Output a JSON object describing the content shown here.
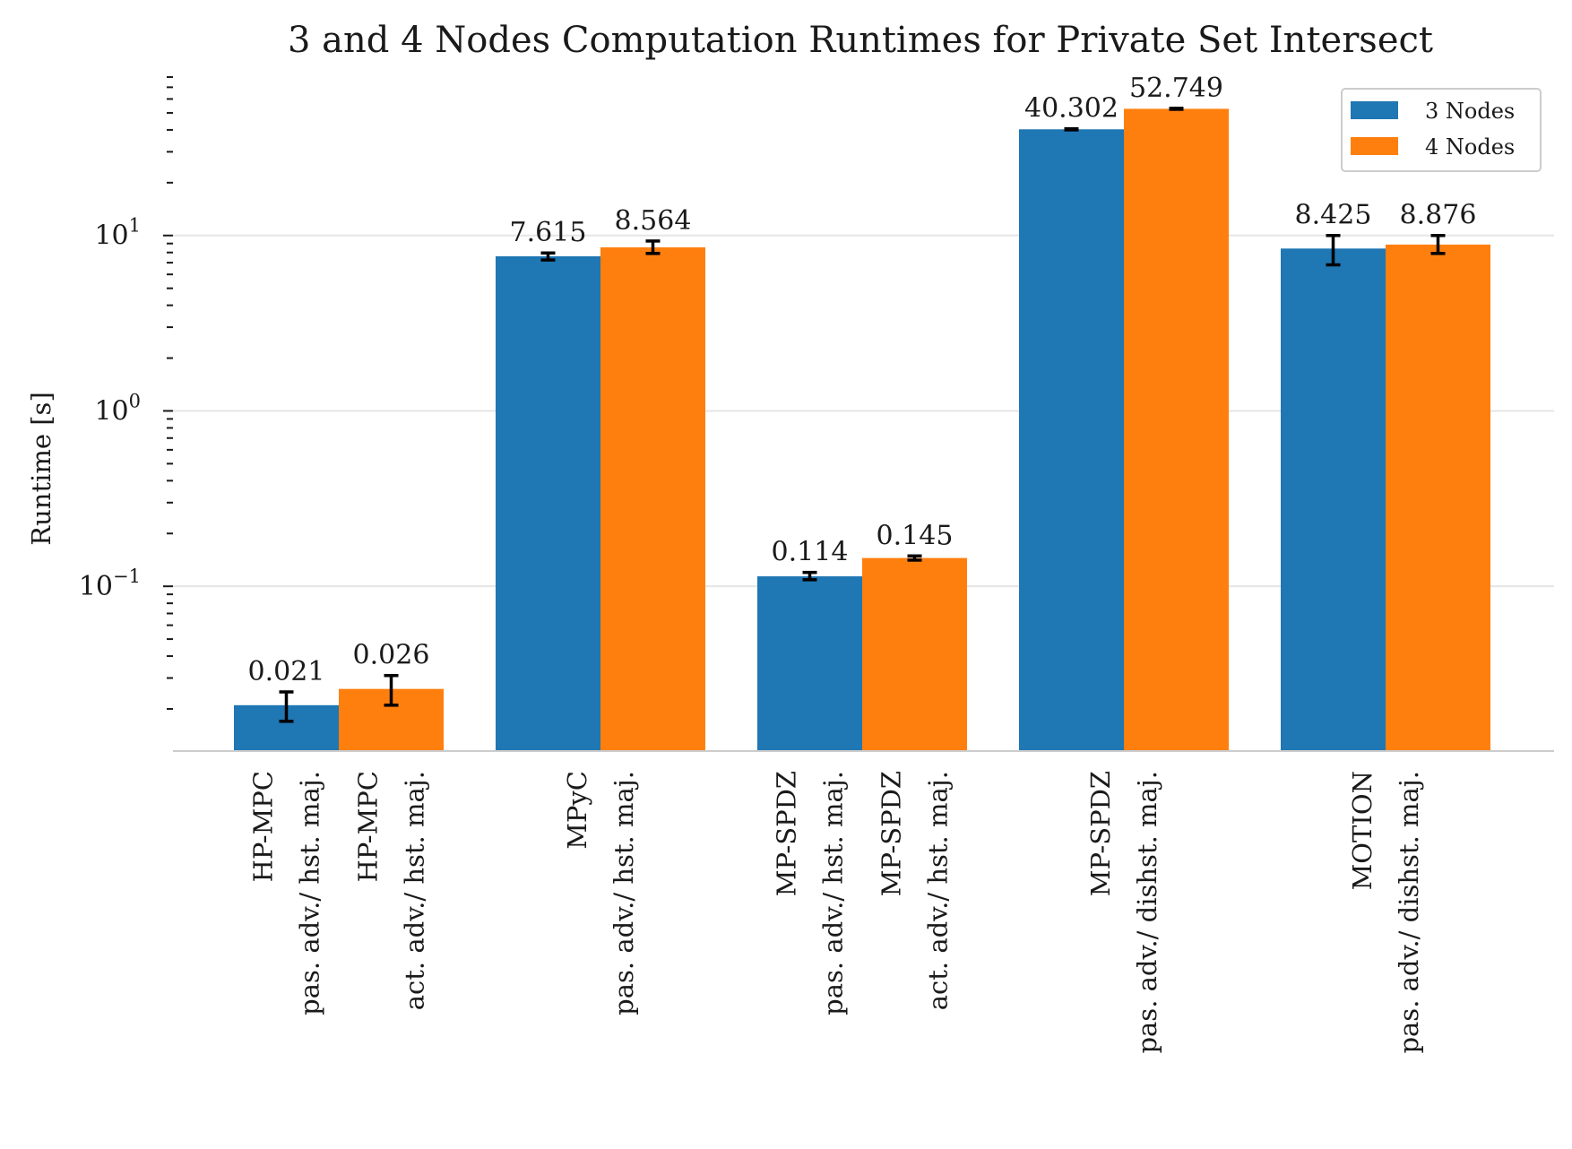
{
  "chart_data": {
    "type": "bar",
    "title": "3 and 4 Nodes Computation Runtimes for Private Set Intersect",
    "xlabel": "",
    "ylabel": "Runtime [s]",
    "yscale": "log",
    "ylim": [
      0.0115,
      80
    ],
    "yticks": [
      {
        "value": 0.1,
        "base": "10",
        "exp": "−1"
      },
      {
        "value": 1,
        "base": "10",
        "exp": "0"
      },
      {
        "value": 10,
        "base": "10",
        "exp": "1"
      }
    ],
    "grid": true,
    "legend": {
      "position": "top-right",
      "entries": [
        {
          "label": "3 Nodes",
          "color": "#1f77b4"
        },
        {
          "label": "4 Nodes",
          "color": "#ff7f0e"
        }
      ]
    },
    "colors": {
      "3 Nodes": "#1f77b4",
      "4 Nodes": "#ff7f0e",
      "error_bar": "#000000",
      "grid": "#e5e5e5"
    },
    "groups": [
      {
        "bars": [
          {
            "series": "3 Nodes",
            "value": 0.021,
            "label": "0.021",
            "err_low": 0.017,
            "err_high": 0.025,
            "tick": [
              "HP-MPC",
              "pas. adv./ hst. maj."
            ]
          },
          {
            "series": "4 Nodes",
            "value": 0.026,
            "label": "0.026",
            "err_low": 0.021,
            "err_high": 0.031,
            "tick": [
              "HP-MPC",
              "act. adv./ hst. maj."
            ]
          }
        ]
      },
      {
        "tick": [
          "MPyC",
          "pas. adv./ hst. maj."
        ],
        "bars": [
          {
            "series": "3 Nodes",
            "value": 7.615,
            "label": "7.615",
            "err_low": 7.25,
            "err_high": 7.95
          },
          {
            "series": "4 Nodes",
            "value": 8.564,
            "label": "8.564",
            "err_low": 7.9,
            "err_high": 9.3
          }
        ]
      },
      {
        "bars": [
          {
            "series": "3 Nodes",
            "value": 0.114,
            "label": "0.114",
            "err_low": 0.109,
            "err_high": 0.12,
            "tick": [
              "MP-SPDZ",
              "pas. adv./ hst. maj."
            ]
          },
          {
            "series": "4 Nodes",
            "value": 0.145,
            "label": "0.145",
            "err_low": 0.141,
            "err_high": 0.149,
            "tick": [
              "MP-SPDZ",
              "act. adv./ hst. maj."
            ]
          }
        ]
      },
      {
        "tick": [
          "MP-SPDZ",
          "pas. adv./ dishst. maj."
        ],
        "bars": [
          {
            "series": "3 Nodes",
            "value": 40.302,
            "label": "40.302",
            "err_low": 40.0,
            "err_high": 40.6
          },
          {
            "series": "4 Nodes",
            "value": 52.749,
            "label": "52.749",
            "err_low": 52.4,
            "err_high": 53.1
          }
        ]
      },
      {
        "tick": [
          "MOTION",
          "pas. adv./ dishst. maj."
        ],
        "bars": [
          {
            "series": "3 Nodes",
            "value": 8.425,
            "label": "8.425",
            "err_low": 6.8,
            "err_high": 10.0
          },
          {
            "series": "4 Nodes",
            "value": 8.876,
            "label": "8.876",
            "err_low": 7.9,
            "err_high": 10.0
          }
        ]
      }
    ]
  }
}
